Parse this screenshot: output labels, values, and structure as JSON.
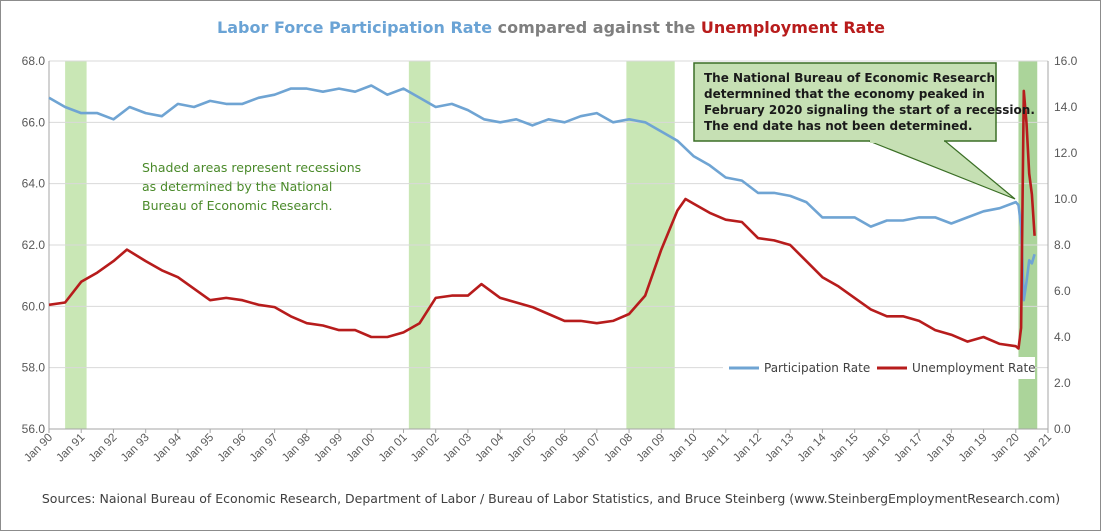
{
  "title": {
    "part1": "Labor Force Participation  Rate",
    "part2": " compared  against  the ",
    "part3": "Unemployment  Rate",
    "color1": "#6aa3d5",
    "color2": "#7f7f7f",
    "color3": "#b81c1c"
  },
  "note": [
    "Shaded areas represent recessions",
    "as determined by the National",
    "Bureau of Economic Research."
  ],
  "callout": [
    "The National Bureau of Economic  Research",
    "determnined that the economy peaked in",
    "February 2020 signaling the start of a recession.",
    "The end date has not been determined."
  ],
  "source": "Sources: Naional Bureau of Economic Research, Department of Labor / Bureau of Labor Statistics, and Bruce Steinberg (www.SteinbergEmploymentResearch.com)",
  "chart_data": {
    "type": "line",
    "x_start": "Jan 90",
    "x_ticks": [
      "Jan 90",
      "Jan 91",
      "Jan 92",
      "Jan 93",
      "Jan 94",
      "Jan 95",
      "Jan 96",
      "Jan 97",
      "Jan 98",
      "Jan 99",
      "Jan 00",
      "Jan 01",
      "Jan 02",
      "Jan 03",
      "Jan 04",
      "Jan 05",
      "Jan 06",
      "Jan 07",
      "Jan 08",
      "Jan 09",
      "Jan 10",
      "Jan 11",
      "Jan 12",
      "Jan 13",
      "Jan 14",
      "Jan 15",
      "Jan 16",
      "Jan 17",
      "Jan 18",
      "Jan 19",
      "Jan 20",
      "Jan 21"
    ],
    "y_left": {
      "ticks": [
        "56.0",
        "58.0",
        "60.0",
        "62.0",
        "64.0",
        "66.0",
        "68.0"
      ],
      "range": [
        56,
        68
      ]
    },
    "y_right": {
      "ticks": [
        "0.0",
        "2.0",
        "4.0",
        "6.0",
        "8.0",
        "10.0",
        "12.0",
        "14.0",
        "16.0"
      ],
      "range": [
        0,
        16
      ]
    },
    "recessions": [
      {
        "start": "Jul 90",
        "end": "Mar 91"
      },
      {
        "start": "Mar 01",
        "end": "Nov 01"
      },
      {
        "start": "Dec 07",
        "end": "Jun 09"
      },
      {
        "start": "Feb 20",
        "end": "Sep 20"
      }
    ],
    "series": [
      {
        "name": "Participation Rate",
        "axis": "left",
        "color": "#6fa4d3",
        "points": [
          [
            "Jan 90",
            66.8
          ],
          [
            "Jul 90",
            66.5
          ],
          [
            "Jan 91",
            66.3
          ],
          [
            "Jul 91",
            66.3
          ],
          [
            "Jan 92",
            66.1
          ],
          [
            "Jul 92",
            66.5
          ],
          [
            "Jan 93",
            66.3
          ],
          [
            "Jul 93",
            66.2
          ],
          [
            "Jan 94",
            66.6
          ],
          [
            "Jul 94",
            66.5
          ],
          [
            "Jan 95",
            66.7
          ],
          [
            "Jul 95",
            66.6
          ],
          [
            "Jan 96",
            66.6
          ],
          [
            "Jul 96",
            66.8
          ],
          [
            "Jan 97",
            66.9
          ],
          [
            "Jul 97",
            67.1
          ],
          [
            "Jan 98",
            67.1
          ],
          [
            "Jul 98",
            67.0
          ],
          [
            "Jan 99",
            67.1
          ],
          [
            "Jul 99",
            67.0
          ],
          [
            "Jan 00",
            67.2
          ],
          [
            "Jul 00",
            66.9
          ],
          [
            "Jan 01",
            67.1
          ],
          [
            "Jul 01",
            66.8
          ],
          [
            "Jan 02",
            66.5
          ],
          [
            "Jul 02",
            66.6
          ],
          [
            "Jan 03",
            66.4
          ],
          [
            "Jul 03",
            66.1
          ],
          [
            "Jan 04",
            66.0
          ],
          [
            "Jul 04",
            66.1
          ],
          [
            "Jan 05",
            65.9
          ],
          [
            "Jul 05",
            66.1
          ],
          [
            "Jan 06",
            66.0
          ],
          [
            "Jul 06",
            66.2
          ],
          [
            "Jan 07",
            66.3
          ],
          [
            "Jul 07",
            66.0
          ],
          [
            "Jan 08",
            66.1
          ],
          [
            "Jul 08",
            66.0
          ],
          [
            "Jan 09",
            65.7
          ],
          [
            "Jul 09",
            65.4
          ],
          [
            "Jan 10",
            64.9
          ],
          [
            "Jul 10",
            64.6
          ],
          [
            "Jan 11",
            64.2
          ],
          [
            "Jul 11",
            64.1
          ],
          [
            "Jan 12",
            63.7
          ],
          [
            "Jul 12",
            63.7
          ],
          [
            "Jan 13",
            63.6
          ],
          [
            "Jul 13",
            63.4
          ],
          [
            "Jan 14",
            62.9
          ],
          [
            "Jul 14",
            62.9
          ],
          [
            "Jan 15",
            62.9
          ],
          [
            "Jul 15",
            62.6
          ],
          [
            "Jan 16",
            62.8
          ],
          [
            "Jul 16",
            62.8
          ],
          [
            "Jan 17",
            62.9
          ],
          [
            "Jul 17",
            62.9
          ],
          [
            "Jan 18",
            62.7
          ],
          [
            "Jul 18",
            62.9
          ],
          [
            "Jan 19",
            63.1
          ],
          [
            "Jul 19",
            63.2
          ],
          [
            "Jan 20",
            63.4
          ],
          [
            "Feb 20",
            63.3
          ],
          [
            "Mar 20",
            62.6
          ],
          [
            "Apr 20",
            60.2
          ],
          [
            "May 20",
            60.8
          ],
          [
            "Jun 20",
            61.5
          ],
          [
            "Jul 20",
            61.4
          ],
          [
            "Aug 20",
            61.7
          ]
        ]
      },
      {
        "name": "Unemployment Rate",
        "axis": "right",
        "color": "#b71c1c",
        "points": [
          [
            "Jan 90",
            5.4
          ],
          [
            "Jul 90",
            5.5
          ],
          [
            "Jan 91",
            6.4
          ],
          [
            "Jul 91",
            6.8
          ],
          [
            "Jan 92",
            7.3
          ],
          [
            "Jun 92",
            7.8
          ],
          [
            "Jan 93",
            7.3
          ],
          [
            "Jul 93",
            6.9
          ],
          [
            "Jan 94",
            6.6
          ],
          [
            "Jul 94",
            6.1
          ],
          [
            "Jan 95",
            5.6
          ],
          [
            "Jul 95",
            5.7
          ],
          [
            "Jan 96",
            5.6
          ],
          [
            "Jul 96",
            5.4
          ],
          [
            "Jan 97",
            5.3
          ],
          [
            "Jul 97",
            4.9
          ],
          [
            "Jan 98",
            4.6
          ],
          [
            "Jul 98",
            4.5
          ],
          [
            "Jan 99",
            4.3
          ],
          [
            "Jul 99",
            4.3
          ],
          [
            "Jan 00",
            4.0
          ],
          [
            "Jul 00",
            4.0
          ],
          [
            "Jan 01",
            4.2
          ],
          [
            "Jul 01",
            4.6
          ],
          [
            "Jan 02",
            5.7
          ],
          [
            "Jul 02",
            5.8
          ],
          [
            "Jan 03",
            5.8
          ],
          [
            "Jun 03",
            6.3
          ],
          [
            "Jan 04",
            5.7
          ],
          [
            "Jul 04",
            5.5
          ],
          [
            "Jan 05",
            5.3
          ],
          [
            "Jul 05",
            5.0
          ],
          [
            "Jan 06",
            4.7
          ],
          [
            "Jul 06",
            4.7
          ],
          [
            "Jan 07",
            4.6
          ],
          [
            "Jul 07",
            4.7
          ],
          [
            "Jan 08",
            5.0
          ],
          [
            "Jul 08",
            5.8
          ],
          [
            "Jan 09",
            7.8
          ],
          [
            "Jul 09",
            9.5
          ],
          [
            "Oct 09",
            10.0
          ],
          [
            "Jan 10",
            9.8
          ],
          [
            "Jul 10",
            9.4
          ],
          [
            "Jan 11",
            9.1
          ],
          [
            "Jul 11",
            9.0
          ],
          [
            "Jan 12",
            8.3
          ],
          [
            "Jul 12",
            8.2
          ],
          [
            "Jan 13",
            8.0
          ],
          [
            "Jul 13",
            7.3
          ],
          [
            "Jan 14",
            6.6
          ],
          [
            "Jul 14",
            6.2
          ],
          [
            "Jan 15",
            5.7
          ],
          [
            "Jul 15",
            5.2
          ],
          [
            "Jan 16",
            4.9
          ],
          [
            "Jul 16",
            4.9
          ],
          [
            "Jan 17",
            4.7
          ],
          [
            "Jul 17",
            4.3
          ],
          [
            "Jan 18",
            4.1
          ],
          [
            "Jul 18",
            3.8
          ],
          [
            "Jan 19",
            4.0
          ],
          [
            "Jul 19",
            3.7
          ],
          [
            "Jan 20",
            3.6
          ],
          [
            "Feb 20",
            3.5
          ],
          [
            "Mar 20",
            4.4
          ],
          [
            "Apr 20",
            14.7
          ],
          [
            "May 20",
            13.3
          ],
          [
            "Jun 20",
            11.1
          ],
          [
            "Jul 20",
            10.2
          ],
          [
            "Aug 20",
            8.4
          ]
        ]
      }
    ],
    "legend_position": "bottom-right"
  }
}
